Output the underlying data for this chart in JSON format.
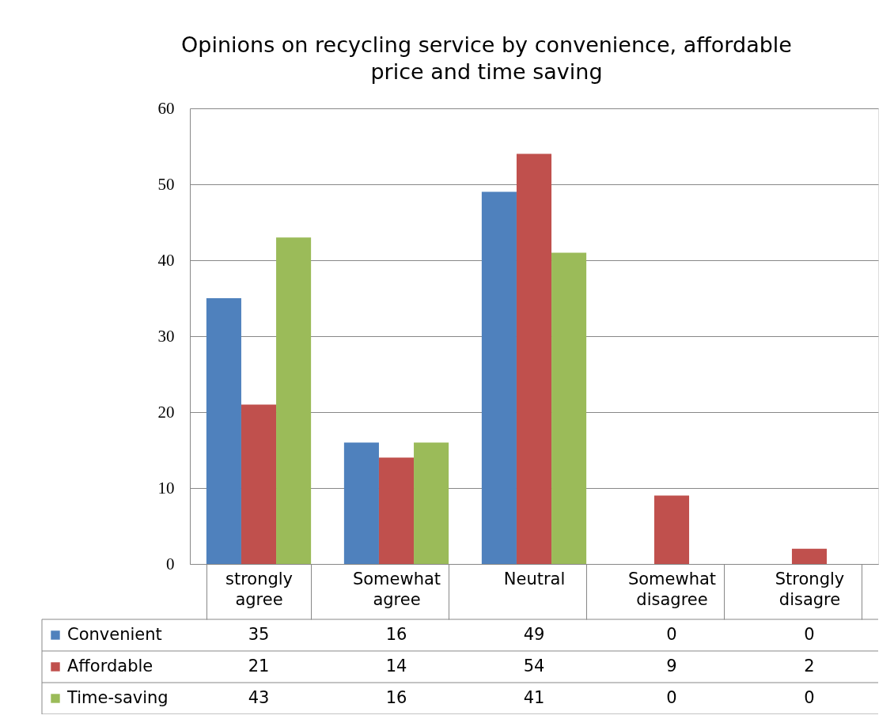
{
  "chart_data": {
    "type": "bar",
    "title": "Opinions on recycling service by convenience, affordable price and time saving",
    "categories": [
      "strongly agree",
      "Somewhat agree",
      "Neutral",
      "Somewhat disagree",
      "Strongly disagre"
    ],
    "series": [
      {
        "name": "Convenient",
        "color": "#4f81bd",
        "values": [
          35,
          16,
          49,
          0,
          0
        ]
      },
      {
        "name": "Affordable",
        "color": "#c0504d",
        "values": [
          21,
          14,
          54,
          9,
          2
        ]
      },
      {
        "name": "Time-saving",
        "color": "#9bbb59",
        "values": [
          43,
          16,
          41,
          0,
          0
        ]
      }
    ],
    "ylim": [
      0,
      60
    ],
    "yticks": [
      0,
      10,
      20,
      30,
      40,
      50,
      60
    ],
    "grid": "y",
    "legend": "bottom left",
    "data_labels": true
  }
}
